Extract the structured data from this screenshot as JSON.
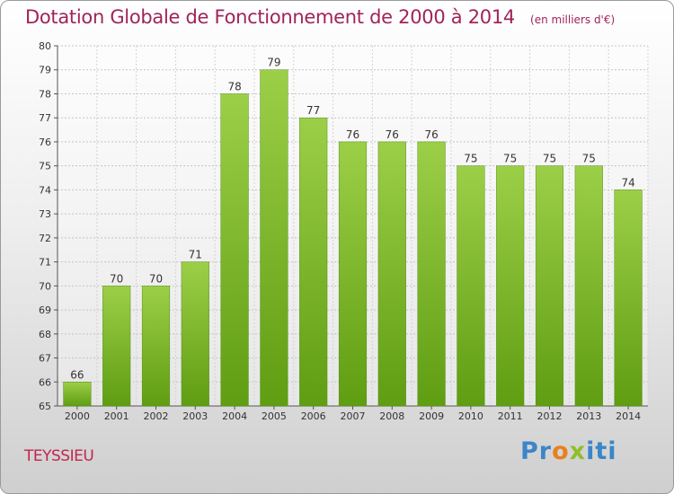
{
  "chart_data": {
    "type": "bar",
    "title": "Dotation Globale de Fonctionnement de 2000 à 2014",
    "subtitle": "(en milliers d'€)",
    "xlabel": "",
    "ylabel": "",
    "categories": [
      "2000",
      "2001",
      "2002",
      "2003",
      "2004",
      "2005",
      "2006",
      "2007",
      "2008",
      "2009",
      "2010",
      "2011",
      "2012",
      "2013",
      "2014"
    ],
    "values": [
      66,
      70,
      70,
      71,
      78,
      79,
      77,
      76,
      76,
      76,
      75,
      75,
      75,
      75,
      74
    ],
    "ylim": [
      65,
      80
    ],
    "yticks": [
      65,
      66,
      67,
      68,
      69,
      70,
      71,
      72,
      73,
      74,
      75,
      76,
      77,
      78,
      79,
      80
    ],
    "grid": true,
    "colors": {
      "bar_top": "#9ccf48",
      "bar_bottom": "#5f9d12",
      "title": "#a0245a"
    }
  },
  "footer": {
    "commune": "TEYSSIEU"
  },
  "logo": {
    "part1": "Pr",
    "part2": "o",
    "part3": "x",
    "part4": "iti"
  }
}
